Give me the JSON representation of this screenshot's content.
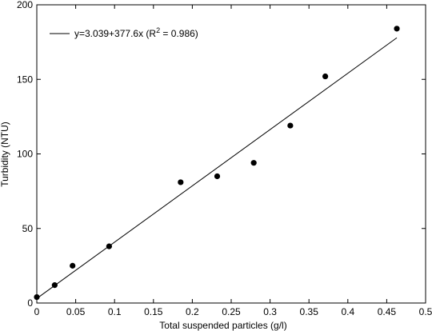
{
  "chart_data": {
    "type": "scatter",
    "xlabel": "Total suspended particles (g/l)",
    "ylabel": "Turbidity (NTU)",
    "xlim": [
      0,
      0.5
    ],
    "ylim": [
      0,
      200
    ],
    "xticks": [
      0,
      0.05,
      0.1,
      0.15,
      0.2,
      0.25,
      0.3,
      0.35,
      0.4,
      0.45,
      0.5
    ],
    "xtick_labels": [
      "0",
      "0.05",
      "0.1",
      "0.15",
      "0.2",
      "0.25",
      "0.3",
      "0.35",
      "0.4",
      "0.45",
      "0.5"
    ],
    "yticks": [
      0,
      50,
      100,
      150,
      200
    ],
    "ytick_labels": [
      "0",
      "50",
      "100",
      "150",
      "200"
    ],
    "grid": false,
    "legend_position": "top-left",
    "series": [
      {
        "x": [
          0.0,
          0.023,
          0.046,
          0.093,
          0.185,
          0.232,
          0.279,
          0.326,
          0.371,
          0.463
        ],
        "y": [
          4,
          12,
          25,
          38,
          81,
          85,
          94,
          119,
          152,
          184
        ],
        "marker_color": "#000000"
      }
    ],
    "fit": {
      "intercept": 3.039,
      "slope": 377.6,
      "x_range": [
        0.0,
        0.463
      ],
      "label": "y=3.039+377.6x (R",
      "label_sup": "2",
      "label_tail": " = 0.986)"
    }
  }
}
